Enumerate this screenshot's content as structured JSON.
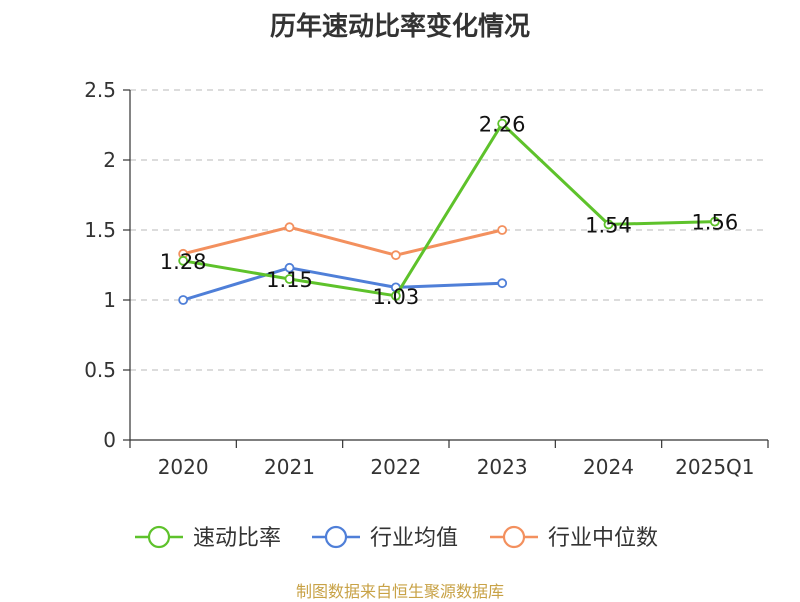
{
  "chart_data": {
    "type": "line",
    "title": "历年速动比率变化情况",
    "categories": [
      "2020",
      "2021",
      "2022",
      "2023",
      "2024",
      "2025Q1"
    ],
    "ylim": [
      0,
      2.5
    ],
    "yticks": [
      "0",
      "0.5",
      "1",
      "1.5",
      "2",
      "2.5"
    ],
    "ytick_values": [
      0,
      0.5,
      1,
      1.5,
      2,
      2.5
    ],
    "grid": true,
    "legend_position": "bottom",
    "series": [
      {
        "name": "速动比率",
        "color": "#5ec22b",
        "values": [
          1.28,
          1.15,
          1.03,
          2.26,
          1.54,
          1.56
        ],
        "labels": [
          "1.28",
          "1.15",
          "1.03",
          "2.26",
          "1.54",
          "1.56"
        ]
      },
      {
        "name": "行业均值",
        "color": "#4f7fd8",
        "values": [
          1.0,
          1.23,
          1.09,
          1.12,
          null,
          null
        ]
      },
      {
        "name": "行业中位数",
        "color": "#f3905e",
        "values": [
          1.33,
          1.52,
          1.32,
          1.5,
          null,
          null
        ]
      }
    ]
  },
  "source_note": "制图数据来自恒生聚源数据库"
}
